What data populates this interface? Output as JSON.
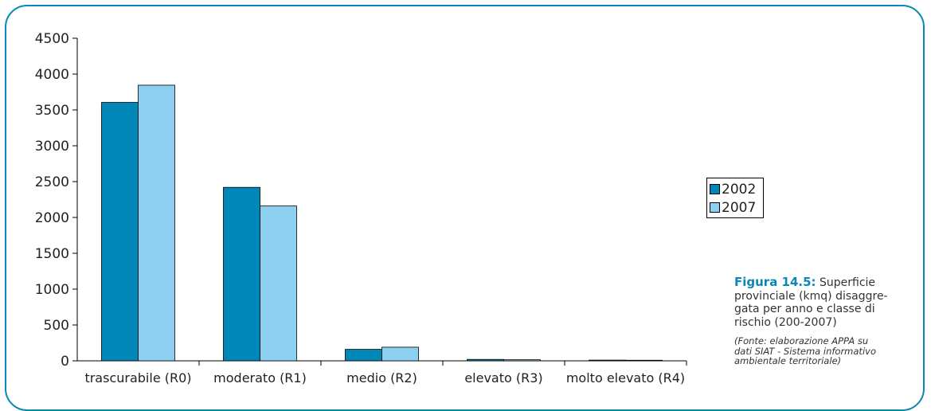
{
  "colors": {
    "frame": "#0a87b5",
    "series_2002": "#0087b8",
    "series_2007": "#8ccff0",
    "caption_title": "#0a87b5"
  },
  "chart_data": {
    "type": "bar",
    "categories": [
      "trascurabile (R0)",
      "moderato (R1)",
      "medio (R2)",
      "elevato (R3)",
      "molto elevato (R4)"
    ],
    "series": [
      {
        "name": "2002",
        "values": [
          3605,
          2420,
          160,
          20,
          10
        ]
      },
      {
        "name": "2007",
        "values": [
          3845,
          2160,
          190,
          15,
          8
        ]
      }
    ],
    "yticks": [
      "0",
      "500",
      "1000",
      "1500",
      "2000",
      "2500",
      "3000",
      "3500",
      "4000",
      "4500"
    ],
    "ylim": [
      0,
      4500
    ],
    "grid": false,
    "legend_position": "right"
  },
  "caption": {
    "title": "Figura 14.5:",
    "lines": [
      "Superficie",
      "provinciale (kmq) disaggre-",
      "gata per anno e classe di",
      "rischio (200-2007)"
    ],
    "source_lines": [
      "(Fonte: elaborazione APPA su",
      "dati SIAT - Sistema informativo",
      "ambientale territoriale)"
    ]
  }
}
